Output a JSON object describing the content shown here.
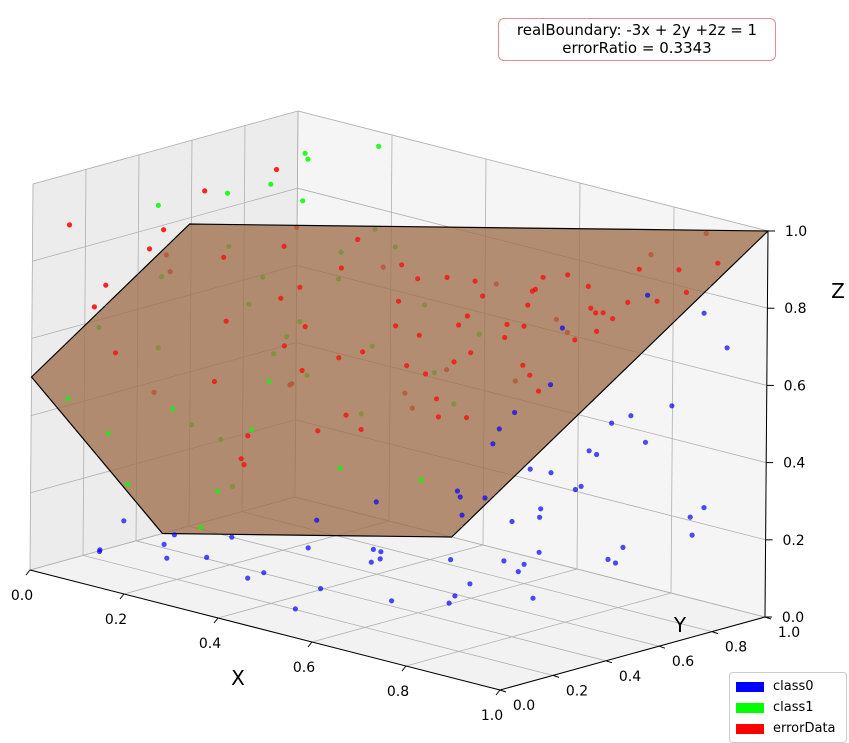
{
  "chart_data": {
    "type": "scatter",
    "dimensions": 3,
    "title": "",
    "annotation": {
      "line1": "realBoundary: -3x + 2y +2z = 1",
      "line2": "errorRatio = 0.3343"
    },
    "xlabel": "X",
    "ylabel": "Y",
    "zlabel": "Z",
    "xlim": [
      0,
      1
    ],
    "ylim": [
      0,
      1
    ],
    "zlim": [
      0,
      1
    ],
    "xticks": [
      "0.0",
      "0.2",
      "0.4",
      "0.6",
      "0.8",
      "1.0"
    ],
    "yticks": [
      "0.0",
      "0.2",
      "0.4",
      "0.6",
      "0.8",
      "1.0"
    ],
    "zticks": [
      "0.0",
      "0.2",
      "0.4",
      "0.6",
      "0.8",
      "1.0"
    ],
    "grid": true,
    "legend_position": "bottom-right",
    "boundary_plane": {
      "equation": "-3x + 2y + 2z = 1",
      "color": "#a0704b",
      "edge_color": "#000000"
    },
    "series": [
      {
        "name": "class0",
        "color": "#0000ff",
        "points": [
          [
            0.12,
            0.05,
            0.08
          ],
          [
            0.25,
            0.1,
            0.15
          ],
          [
            0.4,
            0.05,
            0.2
          ],
          [
            0.55,
            0.12,
            0.1
          ],
          [
            0.7,
            0.08,
            0.25
          ],
          [
            0.85,
            0.15,
            0.2
          ],
          [
            0.95,
            0.1,
            0.3
          ],
          [
            0.6,
            0.3,
            0.05
          ],
          [
            0.75,
            0.25,
            0.1
          ],
          [
            0.9,
            0.3,
            0.15
          ],
          [
            0.5,
            0.4,
            0.1
          ],
          [
            0.65,
            0.45,
            0.05
          ],
          [
            0.8,
            0.5,
            0.2
          ],
          [
            0.95,
            0.55,
            0.25
          ],
          [
            0.7,
            0.6,
            0.1
          ],
          [
            0.85,
            0.7,
            0.15
          ],
          [
            0.98,
            0.75,
            0.3
          ],
          [
            0.6,
            0.8,
            0.05
          ],
          [
            0.75,
            0.85,
            0.1
          ],
          [
            0.9,
            0.9,
            0.2
          ],
          [
            0.55,
            0.95,
            0.15
          ],
          [
            0.88,
            0.98,
            0.25
          ],
          [
            0.35,
            0.2,
            0.05
          ],
          [
            0.45,
            0.25,
            0.15
          ],
          [
            0.3,
            0.35,
            0.02
          ],
          [
            0.2,
            0.15,
            0.1
          ],
          [
            0.15,
            0.25,
            0.03
          ],
          [
            0.65,
            0.15,
            0.35
          ],
          [
            0.8,
            0.2,
            0.4
          ],
          [
            0.92,
            0.25,
            0.5
          ],
          [
            0.72,
            0.35,
            0.3
          ],
          [
            0.88,
            0.4,
            0.45
          ],
          [
            0.98,
            0.45,
            0.6
          ],
          [
            0.82,
            0.6,
            0.35
          ],
          [
            0.94,
            0.65,
            0.5
          ],
          [
            0.78,
            0.75,
            0.4
          ],
          [
            0.9,
            0.82,
            0.55
          ],
          [
            0.68,
            0.9,
            0.35
          ],
          [
            0.96,
            0.92,
            0.7
          ],
          [
            0.7,
            0.5,
            0.45
          ],
          [
            0.85,
            0.1,
            0.45
          ],
          [
            0.99,
            0.2,
            0.75
          ],
          [
            0.93,
            0.35,
            0.85
          ],
          [
            0.97,
            0.6,
            0.9
          ],
          [
            0.6,
            0.65,
            0.25
          ],
          [
            0.5,
            0.7,
            0.05
          ],
          [
            0.42,
            0.55,
            0.08
          ],
          [
            0.58,
            0.05,
            0.3
          ],
          [
            0.33,
            0.08,
            0.12
          ],
          [
            0.08,
            0.12,
            0.05
          ],
          [
            0.03,
            0.3,
            0.08
          ],
          [
            0.48,
            0.15,
            0.02
          ],
          [
            0.62,
            0.22,
            0.18
          ],
          [
            0.77,
            0.45,
            0.28
          ],
          [
            0.86,
            0.55,
            0.38
          ],
          [
            0.74,
            0.95,
            0.45
          ],
          [
            0.83,
            0.35,
            0.6
          ],
          [
            0.91,
            0.15,
            0.62
          ],
          [
            0.95,
            0.85,
            0.8
          ],
          [
            0.66,
            0.75,
            0.2
          ]
        ]
      },
      {
        "name": "class1",
        "color": "#00ff00",
        "points": [
          [
            0.05,
            0.95,
            0.9
          ],
          [
            0.1,
            0.85,
            0.95
          ],
          [
            0.15,
            0.9,
            0.7
          ],
          [
            0.02,
            0.7,
            0.85
          ],
          [
            0.2,
            0.95,
            0.98
          ],
          [
            0.08,
            0.6,
            0.75
          ],
          [
            0.12,
            0.75,
            0.5
          ],
          [
            0.25,
            0.85,
            0.8
          ],
          [
            0.18,
            0.5,
            0.65
          ],
          [
            0.05,
            0.4,
            0.7
          ],
          [
            0.3,
            0.95,
            0.6
          ],
          [
            0.22,
            0.65,
            0.45
          ],
          [
            0.1,
            0.3,
            0.55
          ],
          [
            0.03,
            0.2,
            0.6
          ],
          [
            0.28,
            0.75,
            0.35
          ],
          [
            0.15,
            0.45,
            0.3
          ],
          [
            0.35,
            0.9,
            0.45
          ],
          [
            0.08,
            0.15,
            0.35
          ],
          [
            0.2,
            0.35,
            0.2
          ],
          [
            0.12,
            0.55,
            0.15
          ],
          [
            0.05,
            0.05,
            0.45
          ],
          [
            0.32,
            0.6,
            0.25
          ],
          [
            0.4,
            0.98,
            0.55
          ],
          [
            0.25,
            0.2,
            0.15
          ],
          [
            0.15,
            0.1,
            0.25
          ],
          [
            0.38,
            0.8,
            0.2
          ],
          [
            0.02,
            0.88,
            0.4
          ],
          [
            0.06,
            0.5,
            0.3
          ],
          [
            0.18,
            0.7,
            0.88
          ],
          [
            0.28,
            0.4,
            0.5
          ],
          [
            0.22,
            0.98,
            0.72
          ],
          [
            0.1,
            0.98,
            0.6
          ],
          [
            0.04,
            0.8,
            0.62
          ],
          [
            0.16,
            0.25,
            0.42
          ],
          [
            0.26,
            0.55,
            0.62
          ],
          [
            0.33,
            0.7,
            0.55
          ],
          [
            0.3,
            0.3,
            0.4
          ],
          [
            0.42,
            0.85,
            0.4
          ],
          [
            0.14,
            0.65,
            0.92
          ],
          [
            0.07,
            0.35,
            0.9
          ]
        ]
      },
      {
        "name": "errorData",
        "color": "#ff0000",
        "points": [
          [
            0.05,
            0.05,
            0.9
          ],
          [
            0.1,
            0.1,
            0.75
          ],
          [
            0.02,
            0.2,
            0.65
          ],
          [
            0.15,
            0.05,
            0.6
          ],
          [
            0.08,
            0.3,
            0.8
          ],
          [
            0.2,
            0.15,
            0.85
          ],
          [
            0.25,
            0.05,
            0.95
          ],
          [
            0.3,
            0.2,
            0.7
          ],
          [
            0.35,
            0.1,
            0.9
          ],
          [
            0.12,
            0.25,
            0.45
          ],
          [
            0.4,
            0.3,
            0.8
          ],
          [
            0.45,
            0.15,
            0.95
          ],
          [
            0.5,
            0.05,
            0.85
          ],
          [
            0.55,
            0.25,
            0.98
          ],
          [
            0.6,
            0.1,
            0.95
          ],
          [
            0.65,
            0.3,
            0.9
          ],
          [
            0.7,
            0.15,
            0.98
          ],
          [
            0.75,
            0.05,
            0.92
          ],
          [
            0.8,
            0.25,
            0.95
          ],
          [
            0.85,
            0.1,
            0.88
          ],
          [
            0.9,
            0.3,
            0.95
          ],
          [
            0.95,
            0.2,
            0.98
          ],
          [
            0.6,
            0.5,
            0.85
          ],
          [
            0.7,
            0.55,
            0.75
          ],
          [
            0.8,
            0.6,
            0.9
          ],
          [
            0.9,
            0.65,
            0.85
          ],
          [
            0.98,
            0.7,
            0.95
          ],
          [
            0.65,
            0.7,
            0.6
          ],
          [
            0.75,
            0.8,
            0.7
          ],
          [
            0.85,
            0.85,
            0.8
          ],
          [
            0.95,
            0.9,
            0.92
          ],
          [
            0.55,
            0.85,
            0.5
          ],
          [
            0.5,
            0.6,
            0.55
          ],
          [
            0.58,
            0.95,
            0.65
          ],
          [
            0.45,
            0.45,
            0.62
          ],
          [
            0.35,
            0.4,
            0.55
          ],
          [
            0.4,
            0.7,
            0.45
          ],
          [
            0.3,
            0.55,
            0.35
          ],
          [
            0.25,
            0.35,
            0.3
          ],
          [
            0.2,
            0.45,
            0.25
          ],
          [
            0.5,
            0.3,
            0.5
          ],
          [
            0.6,
            0.35,
            0.65
          ],
          [
            0.7,
            0.4,
            0.8
          ],
          [
            0.8,
            0.45,
            0.85
          ],
          [
            0.9,
            0.5,
            0.92
          ],
          [
            0.98,
            0.55,
            0.98
          ],
          [
            0.72,
            0.25,
            0.62
          ],
          [
            0.82,
            0.2,
            0.78
          ],
          [
            0.92,
            0.15,
            0.86
          ],
          [
            0.99,
            0.35,
            0.92
          ],
          [
            0.68,
            0.65,
            0.72
          ],
          [
            0.78,
            0.95,
            0.88
          ],
          [
            0.88,
            0.98,
            0.96
          ],
          [
            0.62,
            0.78,
            0.55
          ],
          [
            0.52,
            0.72,
            0.42
          ],
          [
            0.42,
            0.5,
            0.4
          ],
          [
            0.32,
            0.25,
            0.4
          ],
          [
            0.22,
            0.3,
            0.5
          ],
          [
            0.04,
            0.45,
            0.7
          ],
          [
            0.14,
            0.4,
            0.95
          ],
          [
            0.18,
            0.6,
            0.98
          ],
          [
            0.28,
            0.5,
            0.88
          ],
          [
            0.38,
            0.65,
            0.78
          ],
          [
            0.48,
            0.9,
            0.72
          ],
          [
            0.57,
            0.45,
            0.7
          ],
          [
            0.66,
            0.2,
            0.8
          ],
          [
            0.76,
            0.35,
            0.88
          ],
          [
            0.86,
            0.4,
            0.95
          ],
          [
            0.96,
            0.45,
            0.88
          ],
          [
            0.84,
            0.7,
            0.78
          ],
          [
            0.74,
            0.6,
            0.58
          ],
          [
            0.64,
            0.4,
            0.52
          ],
          [
            0.54,
            0.2,
            0.68
          ],
          [
            0.44,
            0.25,
            0.72
          ],
          [
            0.34,
            0.35,
            0.62
          ],
          [
            0.24,
            0.55,
            0.45
          ],
          [
            0.16,
            0.7,
            0.4
          ],
          [
            0.36,
            0.8,
            0.38
          ],
          [
            0.46,
            0.75,
            0.52
          ],
          [
            0.56,
            0.6,
            0.6
          ],
          [
            0.66,
            0.85,
            0.66
          ],
          [
            0.76,
            0.7,
            0.7
          ],
          [
            0.86,
            0.6,
            0.82
          ],
          [
            0.94,
            0.8,
            0.86
          ]
        ]
      }
    ]
  }
}
